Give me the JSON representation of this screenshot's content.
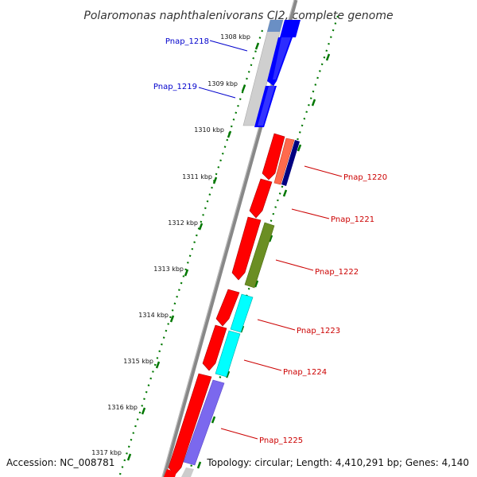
{
  "title": "Polaromonas naphthalenivorans CJ2, complete genome",
  "footer": {
    "accession": "Accession: NC_008781",
    "summary": "Topology: circular; Length: 4,410,291 bp; Genes: 4,140"
  },
  "scale": {
    "ticks": [
      "1308 kbp",
      "1309 kbp",
      "1310 kbp",
      "1311 kbp",
      "1312 kbp",
      "1313 kbp",
      "1314 kbp",
      "1315 kbp",
      "1316 kbp",
      "1317 kbp"
    ]
  },
  "genes": [
    {
      "name": "Pnap_1218",
      "strand": "upper",
      "color": "#0000cc"
    },
    {
      "name": "Pnap_1219",
      "strand": "upper",
      "color": "#0000cc"
    },
    {
      "name": "Pnap_1220",
      "strand": "lower",
      "color": "#cc0000"
    },
    {
      "name": "Pnap_1221",
      "strand": "lower",
      "color": "#cc0000"
    },
    {
      "name": "Pnap_1222",
      "strand": "lower",
      "color": "#cc0000"
    },
    {
      "name": "Pnap_1223",
      "strand": "lower",
      "color": "#cc0000"
    },
    {
      "name": "Pnap_1224",
      "strand": "lower",
      "color": "#cc0000"
    },
    {
      "name": "Pnap_1225",
      "strand": "lower",
      "color": "#cc0000"
    }
  ],
  "colors": {
    "forward_cds": "#0000ff",
    "reverse_cds": "#ff0000",
    "backbone": "#888888",
    "tick": "#007700",
    "cog_1220_a": "#ff6a4d",
    "cog_1220_b": "#000080",
    "cog_1222": "#6b8e23",
    "cog_1223": "#00ffff",
    "cog_1225": "#7b68ee"
  }
}
